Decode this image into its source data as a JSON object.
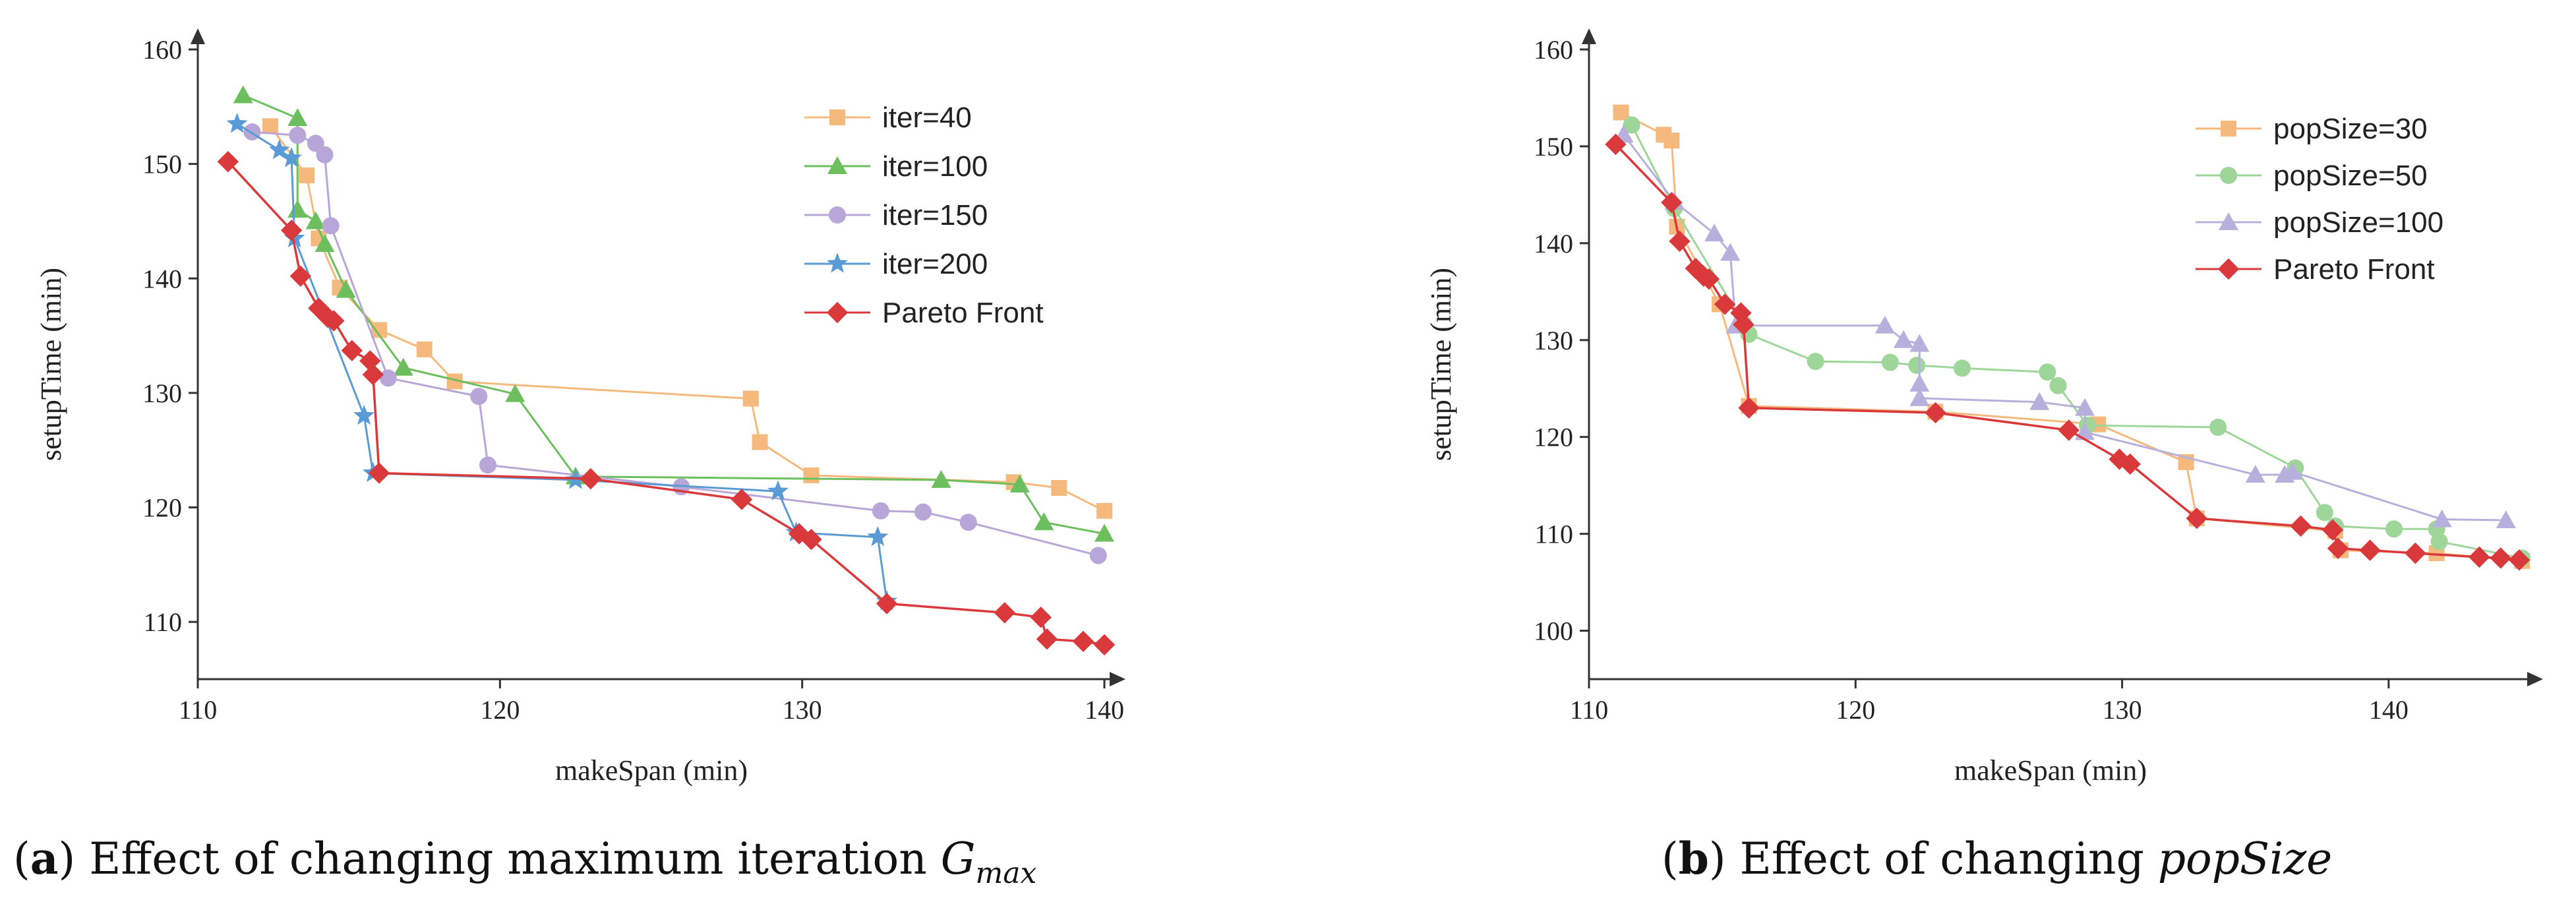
{
  "chart_data": [
    {
      "type": "line",
      "panel": "a",
      "caption": {
        "letter": "a",
        "text": "Effect of changing maximum iteration",
        "symbol": "G",
        "subscript": "max"
      },
      "xlabel": "makeSpan (min)",
      "ylabel": "setupTime (min)",
      "xlim": [
        110,
        140
      ],
      "ylim": [
        105,
        160
      ],
      "xticks": [
        110,
        120,
        130,
        140
      ],
      "yticks": [
        110,
        120,
        130,
        140,
        150,
        160
      ],
      "legend_position": "top-right",
      "series": [
        {
          "name": "iter=40",
          "color": "#f5b97e",
          "marker": "square",
          "points": [
            [
              112.4,
              153.3
            ],
            [
              113.6,
              149
            ],
            [
              114,
              143.5
            ],
            [
              114.7,
              139.2
            ],
            [
              116,
              135.5
            ],
            [
              117.5,
              133.8
            ],
            [
              118.5,
              131
            ],
            [
              128.3,
              129.5
            ],
            [
              128.6,
              125.7
            ],
            [
              130.3,
              122.8
            ],
            [
              137,
              122.2
            ],
            [
              138.5,
              121.7
            ],
            [
              140,
              119.7
            ]
          ]
        },
        {
          "name": "iter=100",
          "color": "#6cbf5c",
          "marker": "triangle",
          "points": [
            [
              111.5,
              156
            ],
            [
              113.3,
              154
            ],
            [
              113.3,
              146
            ],
            [
              113.9,
              145
            ],
            [
              114.2,
              143
            ],
            [
              114.9,
              139
            ],
            [
              116.8,
              132.2
            ],
            [
              120.5,
              129.9
            ],
            [
              122.5,
              122.7
            ],
            [
              134.6,
              122.4
            ],
            [
              137.2,
              122
            ],
            [
              138,
              118.7
            ],
            [
              140,
              117.7
            ]
          ]
        },
        {
          "name": "iter=150",
          "color": "#b9a6d9",
          "marker": "circle",
          "points": [
            [
              111.8,
              152.8
            ],
            [
              113.3,
              152.5
            ],
            [
              113.9,
              151.8
            ],
            [
              114.2,
              150.8
            ],
            [
              114.4,
              144.6
            ],
            [
              116.3,
              131.3
            ],
            [
              119.3,
              129.7
            ],
            [
              119.6,
              123.7
            ],
            [
              126,
              121.8
            ],
            [
              132.6,
              119.7
            ],
            [
              134,
              119.6
            ],
            [
              135.5,
              118.7
            ],
            [
              139.8,
              115.8
            ]
          ]
        },
        {
          "name": "iter=200",
          "color": "#5b9bd5",
          "marker": "star",
          "points": [
            [
              111.3,
              153.5
            ],
            [
              112.7,
              151.2
            ],
            [
              113.1,
              150.5
            ],
            [
              113.2,
              143.5
            ],
            [
              115.5,
              128
            ],
            [
              115.8,
              123
            ],
            [
              122.5,
              122.4
            ],
            [
              129.2,
              121.4
            ],
            [
              129.8,
              117.8
            ],
            [
              132.5,
              117.4
            ],
            [
              132.8,
              111.8
            ]
          ]
        },
        {
          "name": "Pareto Front",
          "color": "#d9393b",
          "marker": "diamond",
          "points": [
            [
              111,
              150.2
            ],
            [
              113.1,
              144.2
            ],
            [
              113.4,
              140.2
            ],
            [
              114,
              137.4
            ],
            [
              114.3,
              136.6
            ],
            [
              114.5,
              136.3
            ],
            [
              115.1,
              133.7
            ],
            [
              115.7,
              132.8
            ],
            [
              115.8,
              131.6
            ],
            [
              116,
              123
            ],
            [
              123,
              122.5
            ],
            [
              128,
              120.7
            ],
            [
              129.9,
              117.7
            ],
            [
              130.3,
              117.2
            ],
            [
              132.8,
              111.6
            ],
            [
              136.7,
              110.8
            ],
            [
              137.9,
              110.4
            ],
            [
              138.1,
              108.5
            ],
            [
              139.3,
              108.3
            ],
            [
              140,
              108
            ]
          ]
        }
      ]
    },
    {
      "type": "line",
      "panel": "b",
      "caption": {
        "letter": "b",
        "text": "Effect of changing",
        "symbol": "popSize",
        "subscript": ""
      },
      "xlabel": "makeSpan (min)",
      "ylabel": "setupTime (min)",
      "xlim": [
        110,
        145
      ],
      "ylim": [
        95,
        160
      ],
      "xticks": [
        110,
        120,
        130,
        140
      ],
      "yticks": [
        100,
        110,
        120,
        130,
        140,
        150,
        160
      ],
      "legend_position": "top-right",
      "series": [
        {
          "name": "popSize=30",
          "color": "#f5b97e",
          "marker": "square",
          "points": [
            [
              111.2,
              153.5
            ],
            [
              112.8,
              151.2
            ],
            [
              113.1,
              150.6
            ],
            [
              113.3,
              141.7
            ],
            [
              114.9,
              133.7
            ],
            [
              116,
              123.2
            ],
            [
              123,
              122.6
            ],
            [
              129.1,
              121.3
            ],
            [
              132.4,
              117.4
            ],
            [
              132.8,
              111.6
            ],
            [
              138,
              110.3
            ],
            [
              138.2,
              108.3
            ],
            [
              141.8,
              108
            ],
            [
              145,
              107.2
            ]
          ]
        },
        {
          "name": "popSize=50",
          "color": "#9ed69a",
          "marker": "circle",
          "points": [
            [
              111.6,
              152.2
            ],
            [
              113.2,
              143.6
            ],
            [
              115.8,
              131.7
            ],
            [
              116,
              130.6
            ],
            [
              118.5,
              127.8
            ],
            [
              121.3,
              127.7
            ],
            [
              122.3,
              127.4
            ],
            [
              124,
              127.1
            ],
            [
              127.2,
              126.7
            ],
            [
              127.6,
              125.3
            ],
            [
              128.7,
              121.2
            ],
            [
              133.6,
              121
            ],
            [
              136.5,
              116.8
            ],
            [
              137.6,
              112.2
            ],
            [
              138,
              110.8
            ],
            [
              140.2,
              110.5
            ],
            [
              141.8,
              110.5
            ],
            [
              141.9,
              109.2
            ],
            [
              145,
              107.5
            ]
          ]
        },
        {
          "name": "popSize=100",
          "color": "#b8b0dc",
          "marker": "triangle",
          "points": [
            [
              111.3,
              151.2
            ],
            [
              113.2,
              144.3
            ],
            [
              114.7,
              141
            ],
            [
              115.3,
              139
            ],
            [
              115.5,
              131.5
            ],
            [
              121.1,
              131.5
            ],
            [
              121.8,
              130
            ],
            [
              122.4,
              129.6
            ],
            [
              122.4,
              125.5
            ],
            [
              122.4,
              124
            ],
            [
              126.9,
              123.6
            ],
            [
              128.6,
              123
            ],
            [
              128.6,
              120.5
            ],
            [
              135,
              116.1
            ],
            [
              136.1,
              116.1
            ],
            [
              136.4,
              116.4
            ],
            [
              142,
              111.5
            ],
            [
              144.4,
              111.4
            ]
          ]
        },
        {
          "name": "Pareto Front",
          "color": "#d9393b",
          "marker": "diamond",
          "points": [
            [
              111,
              150.2
            ],
            [
              113.1,
              144.2
            ],
            [
              113.4,
              140.2
            ],
            [
              114,
              137.4
            ],
            [
              114.3,
              136.6
            ],
            [
              114.5,
              136.3
            ],
            [
              115.1,
              133.7
            ],
            [
              115.7,
              132.8
            ],
            [
              115.8,
              131.6
            ],
            [
              116,
              123
            ],
            [
              123,
              122.5
            ],
            [
              128,
              120.7
            ],
            [
              129.9,
              117.7
            ],
            [
              130.3,
              117.2
            ],
            [
              132.8,
              111.6
            ],
            [
              136.7,
              110.8
            ],
            [
              137.9,
              110.4
            ],
            [
              138.1,
              108.5
            ],
            [
              139.3,
              108.3
            ],
            [
              141,
              108
            ],
            [
              143.4,
              107.6
            ],
            [
              144.2,
              107.5
            ],
            [
              144.9,
              107.3
            ]
          ]
        }
      ]
    }
  ]
}
